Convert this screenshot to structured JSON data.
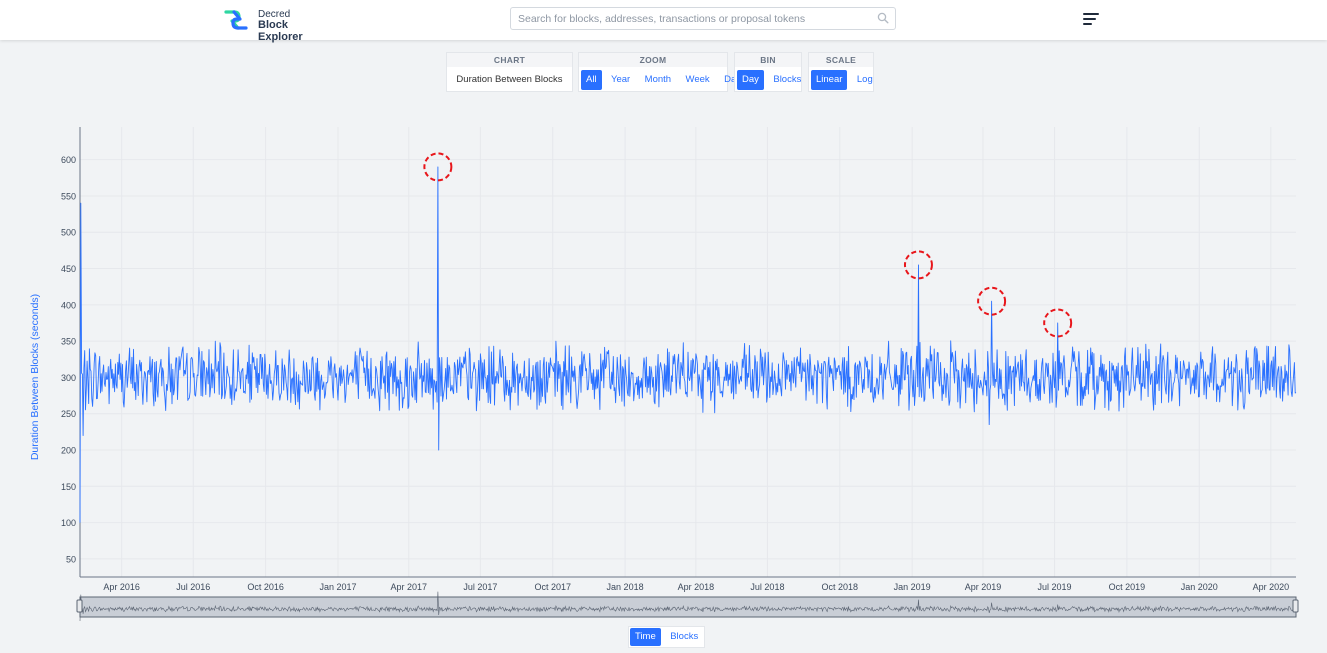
{
  "header": {
    "logo_line1": "Decred",
    "logo_line2": "Block Explorer",
    "search_placeholder": "Search for blocks, addresses, transactions or proposal tokens",
    "search_icon": "search-icon",
    "menu_icon": "hamburger-menu-icon"
  },
  "controls": {
    "chart": {
      "caption": "CHART",
      "value": "Duration Between Blocks"
    },
    "zoom": {
      "caption": "ZOOM",
      "options": [
        "All",
        "Year",
        "Month",
        "Week",
        "Day"
      ],
      "active": "All"
    },
    "bin": {
      "caption": "BIN",
      "options": [
        "Day",
        "Blocks"
      ],
      "active": "Day"
    },
    "scale": {
      "caption": "SCALE",
      "options": [
        "Linear",
        "Log"
      ],
      "active": "Linear"
    }
  },
  "axis_toggle": {
    "options": [
      "Time",
      "Blocks"
    ],
    "active": "Time"
  },
  "colors": {
    "line": "#2970ff",
    "accent": "#2970ff",
    "annotation": "#e8161b",
    "grid": "#e6e8ec"
  },
  "chart_data": {
    "type": "line",
    "ylabel": "Duration Between Blocks (seconds)",
    "yticks": [
      50,
      100,
      150,
      200,
      250,
      300,
      350,
      400,
      450,
      500,
      550,
      600
    ],
    "ylim": [
      25,
      645
    ],
    "x_start": "2016-02-08",
    "x_end": "2020-05-03",
    "xticks": [
      {
        "label": "Apr 2016",
        "date": "2016-04-01"
      },
      {
        "label": "Jul 2016",
        "date": "2016-07-01"
      },
      {
        "label": "Oct 2016",
        "date": "2016-10-01"
      },
      {
        "label": "Jan 2017",
        "date": "2017-01-01"
      },
      {
        "label": "Apr 2017",
        "date": "2017-04-01"
      },
      {
        "label": "Jul 2017",
        "date": "2017-07-01"
      },
      {
        "label": "Oct 2017",
        "date": "2017-10-01"
      },
      {
        "label": "Jan 2018",
        "date": "2018-01-01"
      },
      {
        "label": "Apr 2018",
        "date": "2018-04-01"
      },
      {
        "label": "Jul 2018",
        "date": "2018-07-01"
      },
      {
        "label": "Oct 2018",
        "date": "2018-10-01"
      },
      {
        "label": "Jan 2019",
        "date": "2019-01-01"
      },
      {
        "label": "Apr 2019",
        "date": "2019-04-01"
      },
      {
        "label": "Jul 2019",
        "date": "2019-07-01"
      },
      {
        "label": "Oct 2019",
        "date": "2019-10-01"
      },
      {
        "label": "Jan 2020",
        "date": "2020-01-01"
      },
      {
        "label": "Apr 2020",
        "date": "2020-04-01"
      }
    ],
    "baseline": 300,
    "noise_amplitude": 35,
    "spikes": [
      {
        "date": "2016-02-08",
        "value": 100
      },
      {
        "date": "2016-02-09",
        "value": 540
      },
      {
        "date": "2016-02-12",
        "value": 220
      },
      {
        "date": "2017-05-08",
        "value": 590
      },
      {
        "date": "2017-05-09",
        "value": 200
      },
      {
        "date": "2019-01-09",
        "value": 455
      },
      {
        "date": "2019-04-12",
        "value": 405
      },
      {
        "date": "2019-04-09",
        "value": 235
      },
      {
        "date": "2019-07-05",
        "value": 375
      }
    ],
    "highlighted": [
      {
        "date": "2017-05-08",
        "value": 590
      },
      {
        "date": "2019-01-09",
        "value": 455
      },
      {
        "date": "2019-04-12",
        "value": 405
      },
      {
        "date": "2019-07-05",
        "value": 375
      }
    ],
    "grid": true,
    "range_selector": true
  }
}
